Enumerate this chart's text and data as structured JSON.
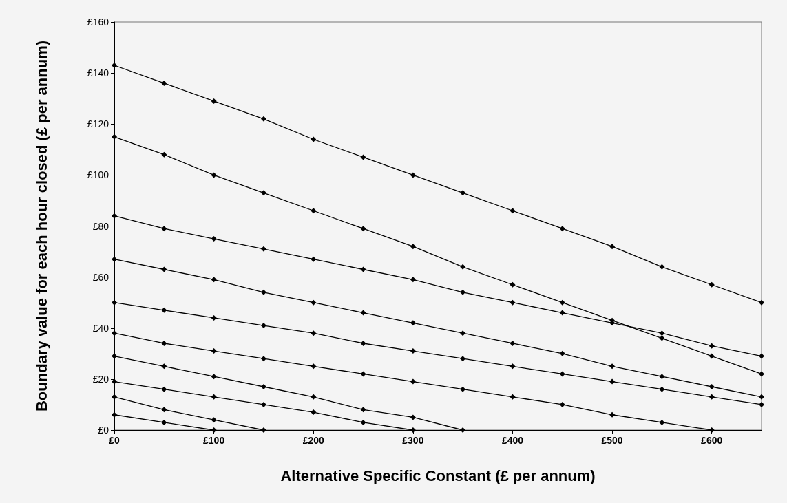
{
  "chart_data": {
    "type": "line",
    "xlabel": "Alternative Specific Constant (£ per annum)",
    "ylabel": "Boundary value for each hour closed (£ per annum)",
    "xlim": [
      0,
      650
    ],
    "xticks": [
      {
        "value": 0,
        "label": "£0"
      },
      {
        "value": 100,
        "label": "£100"
      },
      {
        "value": 200,
        "label": "£200"
      },
      {
        "value": 300,
        "label": "£300"
      },
      {
        "value": 400,
        "label": "£400"
      },
      {
        "value": 500,
        "label": "£500"
      },
      {
        "value": 600,
        "label": "£600"
      }
    ],
    "ylim": [
      0,
      160
    ],
    "yticks": [
      {
        "value": 0,
        "label": "£0"
      },
      {
        "value": 20,
        "label": "£20"
      },
      {
        "value": 40,
        "label": "£40"
      },
      {
        "value": 60,
        "label": "£60"
      },
      {
        "value": 80,
        "label": "£80"
      },
      {
        "value": 100,
        "label": "£100"
      },
      {
        "value": 120,
        "label": "£120"
      },
      {
        "value": 140,
        "label": "£140"
      },
      {
        "value": 160,
        "label": "£160"
      }
    ],
    "grid": false,
    "marker": "diamond",
    "line_style": "solid",
    "series": [
      {
        "color": "#000000",
        "x": [
          0,
          50,
          100,
          150,
          200,
          250,
          300,
          350,
          400,
          450,
          500,
          550,
          600,
          650
        ],
        "values": [
          143,
          136,
          129,
          122,
          114,
          107,
          100,
          93,
          86,
          79,
          72,
          64,
          57,
          50
        ]
      },
      {
        "color": "#000000",
        "x": [
          0,
          50,
          100,
          150,
          200,
          250,
          300,
          350,
          400,
          450,
          500,
          550,
          600,
          650
        ],
        "values": [
          115,
          108,
          100,
          93,
          86,
          79,
          72,
          64,
          57,
          50,
          43,
          36,
          29,
          22
        ]
      },
      {
        "color": "#000000",
        "x": [
          0,
          50,
          100,
          150,
          200,
          250,
          300,
          350,
          400,
          450,
          500,
          550,
          600,
          650
        ],
        "values": [
          84,
          79,
          75,
          71,
          67,
          63,
          59,
          54,
          50,
          46,
          42,
          38,
          33,
          29
        ]
      },
      {
        "color": "#000000",
        "x": [
          0,
          50,
          100,
          150,
          200,
          250,
          300,
          350,
          400,
          450,
          500,
          550,
          600,
          650
        ],
        "values": [
          67,
          63,
          59,
          54,
          50,
          46,
          42,
          38,
          34,
          30,
          25,
          21,
          17,
          13
        ]
      },
      {
        "color": "#000000",
        "x": [
          0,
          50,
          100,
          150,
          200,
          250,
          300,
          350,
          400,
          450,
          500,
          550,
          600,
          650
        ],
        "values": [
          50,
          47,
          44,
          41,
          38,
          34,
          31,
          28,
          25,
          22,
          19,
          16,
          13,
          10
        ]
      },
      {
        "color": "#000000",
        "x": [
          0,
          50,
          100,
          150,
          200,
          250,
          300,
          350,
          400,
          450,
          500,
          550,
          600
        ],
        "values": [
          38,
          34,
          31,
          28,
          25,
          22,
          19,
          16,
          13,
          10,
          6,
          3,
          0
        ]
      },
      {
        "color": "#000000",
        "x": [
          0,
          50,
          100,
          150,
          200,
          250,
          300,
          350
        ],
        "values": [
          29,
          25,
          21,
          17,
          13,
          8,
          5,
          0
        ]
      },
      {
        "color": "#000000",
        "x": [
          0,
          50,
          100,
          150,
          200,
          250,
          300
        ],
        "values": [
          19,
          16,
          13,
          10,
          7,
          3,
          0
        ]
      },
      {
        "color": "#000000",
        "x": [
          0,
          50,
          100,
          150
        ],
        "values": [
          13,
          8,
          4,
          0
        ]
      },
      {
        "color": "#000000",
        "x": [
          0,
          50,
          100
        ],
        "values": [
          6,
          3,
          0
        ]
      }
    ]
  }
}
